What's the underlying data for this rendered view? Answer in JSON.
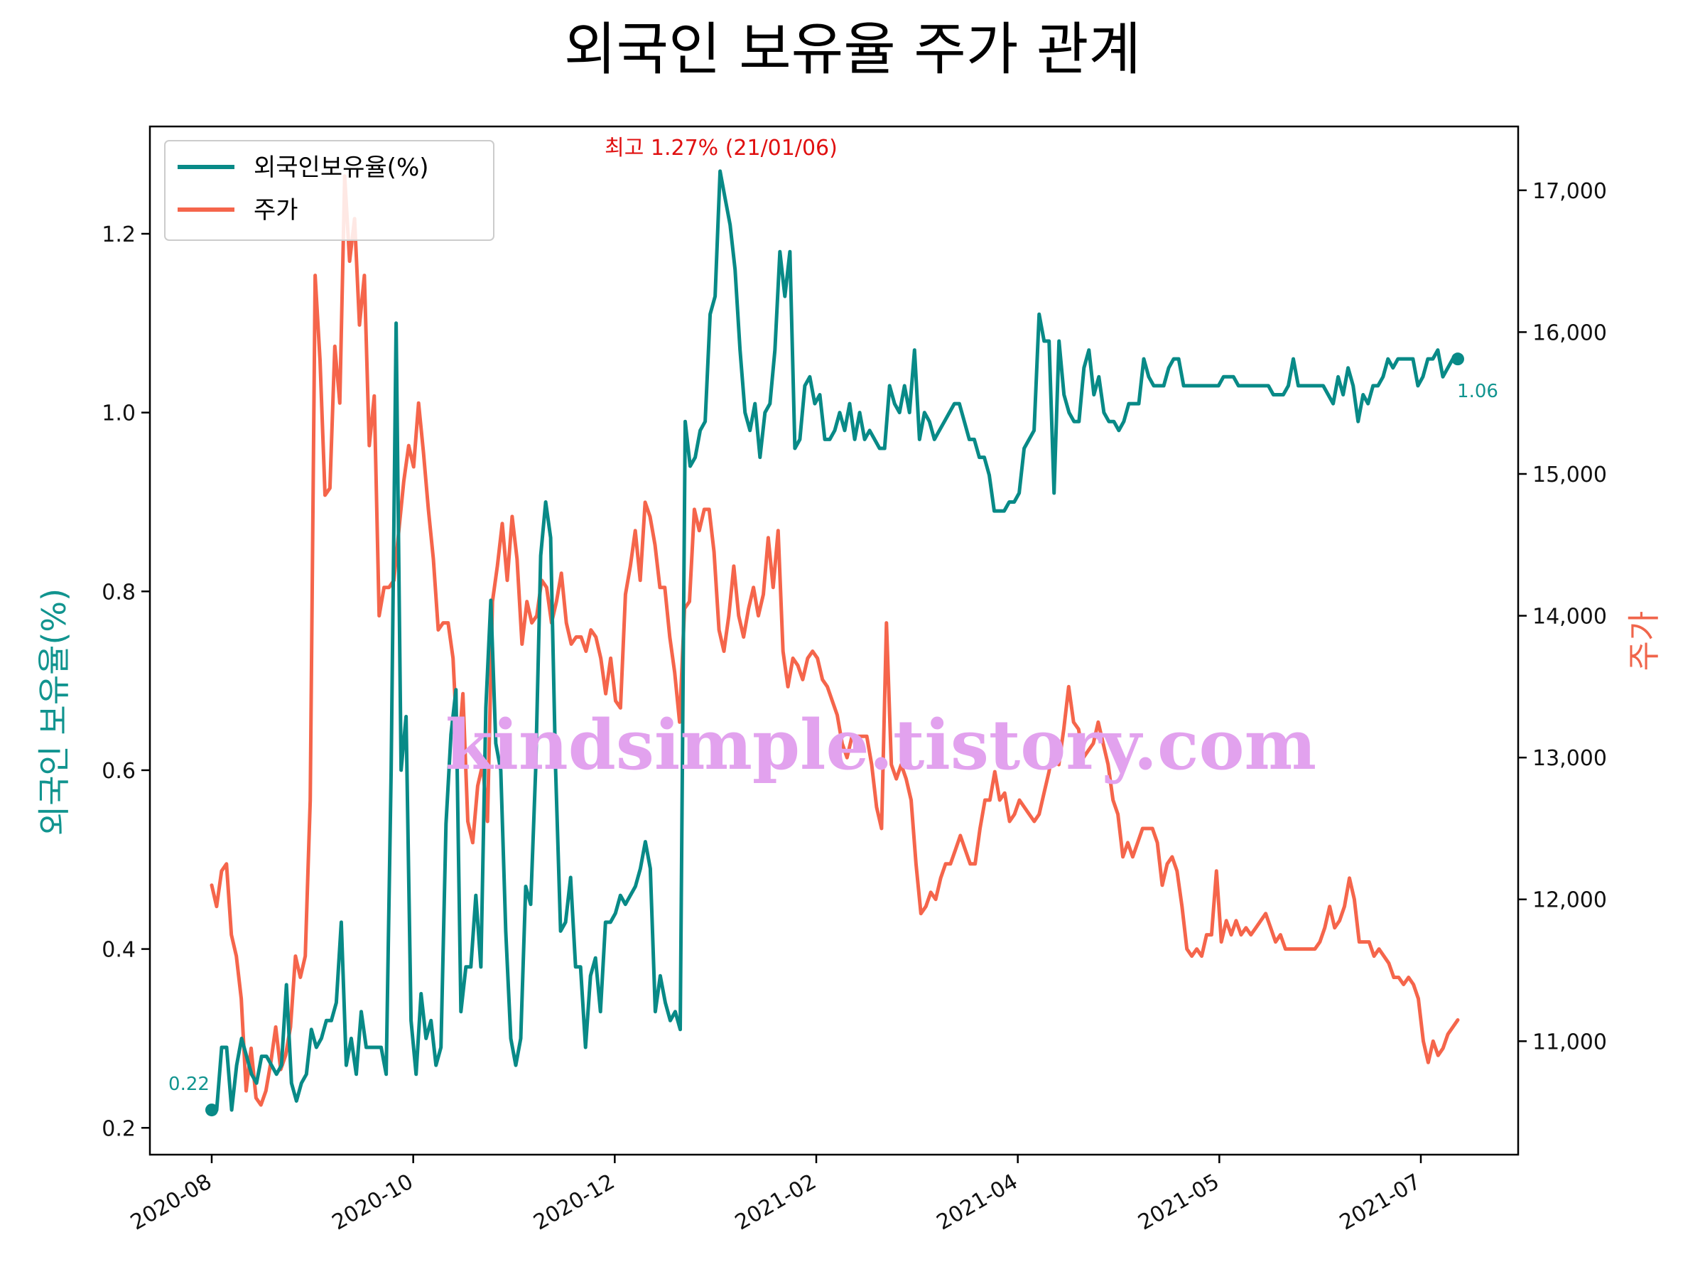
{
  "chart_data": {
    "type": "line",
    "title": "외국인 보유율 주가 관계",
    "ylabel_left": "외국인 보유율(%)",
    "ylabel_right": "주가",
    "ylim_left": [
      0.17,
      1.32
    ],
    "ylim_right": [
      10200,
      17450
    ],
    "y_ticks_left": [
      "0.2",
      "0.4",
      "0.6",
      "0.8",
      "1.0",
      "1.2"
    ],
    "y_ticks_right": [
      "11,000",
      "12,000",
      "13,000",
      "14,000",
      "15,000",
      "16,000",
      "17,000"
    ],
    "x_ticks": [
      "2020-08",
      "2020-10",
      "2020-12",
      "2021-02",
      "2021-04",
      "2021-05",
      "2021-07"
    ],
    "legend_position": "top-left",
    "grid": false,
    "series": [
      {
        "name": "외국인보유율(%)",
        "color": "#088a87",
        "axis": "left",
        "values": [
          0.22,
          0.22,
          0.29,
          0.29,
          0.22,
          0.27,
          0.3,
          0.28,
          0.26,
          0.25,
          0.28,
          0.28,
          0.27,
          0.26,
          0.27,
          0.36,
          0.25,
          0.23,
          0.25,
          0.26,
          0.31,
          0.29,
          0.3,
          0.32,
          0.32,
          0.34,
          0.43,
          0.27,
          0.3,
          0.26,
          0.33,
          0.29,
          0.29,
          0.29,
          0.29,
          0.26,
          0.6,
          1.1,
          0.6,
          0.66,
          0.32,
          0.26,
          0.35,
          0.3,
          0.32,
          0.27,
          0.29,
          0.54,
          0.64,
          0.69,
          0.33,
          0.38,
          0.38,
          0.46,
          0.38,
          0.67,
          0.79,
          0.63,
          0.6,
          0.42,
          0.3,
          0.27,
          0.3,
          0.47,
          0.45,
          0.6,
          0.84,
          0.9,
          0.86,
          0.6,
          0.42,
          0.43,
          0.48,
          0.38,
          0.38,
          0.29,
          0.37,
          0.39,
          0.33,
          0.43,
          0.43,
          0.44,
          0.46,
          0.45,
          0.46,
          0.47,
          0.49,
          0.52,
          0.49,
          0.33,
          0.37,
          0.34,
          0.32,
          0.33,
          0.31,
          0.99,
          0.94,
          0.95,
          0.98,
          0.99,
          1.11,
          1.13,
          1.27,
          1.24,
          1.21,
          1.16,
          1.07,
          1.0,
          0.98,
          1.01,
          0.95,
          1.0,
          1.01,
          1.07,
          1.18,
          1.13,
          1.18,
          0.96,
          0.97,
          1.03,
          1.04,
          1.01,
          1.02,
          0.97,
          0.97,
          0.98,
          1.0,
          0.98,
          1.01,
          0.97,
          1.0,
          0.97,
          0.98,
          0.97,
          0.96,
          0.96,
          1.03,
          1.01,
          1.0,
          1.03,
          1.0,
          1.07,
          0.97,
          1.0,
          0.99,
          0.97,
          0.98,
          0.99,
          1.0,
          1.01,
          1.01,
          0.99,
          0.97,
          0.97,
          0.95,
          0.95,
          0.93,
          0.89,
          0.89,
          0.89,
          0.9,
          0.9,
          0.91,
          0.96,
          0.97,
          0.98,
          1.11,
          1.08,
          1.08,
          0.91,
          1.08,
          1.02,
          1.0,
          0.99,
          0.99,
          1.05,
          1.07,
          1.02,
          1.04,
          1.0,
          0.99,
          0.99,
          0.98,
          0.99,
          1.01,
          1.01,
          1.01,
          1.06,
          1.04,
          1.03,
          1.03,
          1.03,
          1.05,
          1.06,
          1.06,
          1.03,
          1.03,
          1.03,
          1.03,
          1.03,
          1.03,
          1.03,
          1.03,
          1.04,
          1.04,
          1.04,
          1.03,
          1.03,
          1.03,
          1.03,
          1.03,
          1.03,
          1.03,
          1.02,
          1.02,
          1.02,
          1.03,
          1.06,
          1.03,
          1.03,
          1.03,
          1.03,
          1.03,
          1.03,
          1.02,
          1.01,
          1.04,
          1.02,
          1.05,
          1.03,
          0.99,
          1.02,
          1.01,
          1.03,
          1.03,
          1.04,
          1.06,
          1.05,
          1.06,
          1.06,
          1.06,
          1.06,
          1.03,
          1.04,
          1.06,
          1.06,
          1.07,
          1.04,
          1.05,
          1.06,
          1.06
        ]
      },
      {
        "name": "주가",
        "color": "#f5654b",
        "axis": "right",
        "values": [
          12100,
          11950,
          12200,
          12250,
          11750,
          11600,
          11300,
          10650,
          10950,
          10600,
          10550,
          10650,
          10850,
          11100,
          10800,
          10900,
          11100,
          11600,
          11450,
          11600,
          12700,
          16400,
          15800,
          14850,
          14900,
          15900,
          15500,
          17100,
          16500,
          16800,
          16050,
          16400,
          15200,
          15550,
          14000,
          14200,
          14200,
          14250,
          14600,
          14950,
          15200,
          15050,
          15500,
          15150,
          14750,
          14400,
          13900,
          13950,
          13950,
          13700,
          13000,
          13450,
          12550,
          12400,
          12800,
          12950,
          12550,
          14100,
          14350,
          14650,
          14250,
          14700,
          14400,
          13800,
          14100,
          13950,
          14000,
          14250,
          14200,
          13950,
          14100,
          14300,
          13950,
          13800,
          13850,
          13850,
          13750,
          13900,
          13850,
          13700,
          13450,
          13700,
          13400,
          13350,
          14150,
          14350,
          14600,
          14250,
          14800,
          14700,
          14500,
          14200,
          14200,
          13850,
          13600,
          13250,
          14050,
          14100,
          14750,
          14600,
          14750,
          14750,
          14450,
          13900,
          13750,
          14000,
          14350,
          14000,
          13850,
          14050,
          14200,
          14000,
          14150,
          14550,
          14200,
          14600,
          13750,
          13500,
          13700,
          13650,
          13550,
          13700,
          13750,
          13700,
          13550,
          13500,
          13400,
          13300,
          13100,
          13000,
          13150,
          13150,
          13150,
          13150,
          12950,
          12650,
          12500,
          13950,
          12950,
          12850,
          12950,
          12850,
          12700,
          12250,
          11900,
          11950,
          12050,
          12000,
          12150,
          12250,
          12250,
          12350,
          12450,
          12350,
          12250,
          12250,
          12500,
          12700,
          12700,
          12900,
          12700,
          12750,
          12550,
          12600,
          12700,
          12650,
          12600,
          12550,
          12600,
          12750,
          12900,
          13100,
          12950,
          13200,
          13500,
          13250,
          13200,
          13000,
          13050,
          13100,
          13250,
          13100,
          12950,
          12700,
          12600,
          12300,
          12400,
          12300,
          12400,
          12500,
          12500,
          12500,
          12400,
          12100,
          12250,
          12300,
          12200,
          11950,
          11650,
          11600,
          11650,
          11600,
          11750,
          11750,
          12200,
          11700,
          11850,
          11750,
          11850,
          11750,
          11800,
          11750,
          11800,
          11850,
          11900,
          11800,
          11700,
          11750,
          11650,
          11650,
          11650,
          11650,
          11650,
          11650,
          11650,
          11700,
          11800,
          11950,
          11800,
          11850,
          11950,
          12150,
          12000,
          11700,
          11700,
          11700,
          11600,
          11650,
          11600,
          11550,
          11450,
          11450,
          11400,
          11450,
          11400,
          11300,
          11000,
          10850,
          11000,
          10900,
          10950,
          11050,
          11100,
          11150
        ]
      }
    ],
    "annotations": {
      "max_label": "최고 1.27% (21/01/06)",
      "start_label": "0.22",
      "end_label": "1.06"
    },
    "watermark": "kindsimple.tistory.com"
  }
}
